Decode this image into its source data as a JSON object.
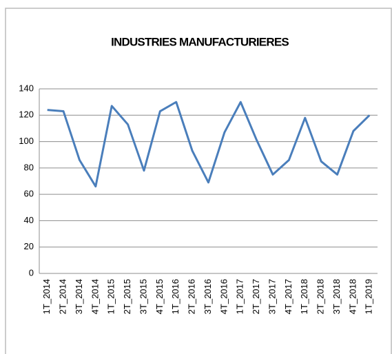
{
  "chart_data": {
    "type": "line",
    "title": "INDUSTRIES MANUFACTURIERES",
    "categories": [
      "1T_2014",
      "2T_2014",
      "3T_2014",
      "4T_2014",
      "1T_2015",
      "2T_2015",
      "3T_2015",
      "4T_2015",
      "1T_2016",
      "2T_2016",
      "3T_2016",
      "4T_2016",
      "1T_2017",
      "2T_2017",
      "3T_2017",
      "4T_2017",
      "1T_2018",
      "2T_2018",
      "3T_2018",
      "4T_2018",
      "1T_2019"
    ],
    "values": [
      124,
      123,
      86,
      66,
      127,
      113,
      78,
      123,
      130,
      93,
      69,
      107,
      130,
      101,
      75,
      86,
      118,
      85,
      75,
      108,
      120
    ],
    "color": "#4a7ebb",
    "ylim": [
      0,
      140
    ],
    "yticks": [
      0,
      20,
      40,
      60,
      80,
      100,
      120,
      140
    ],
    "grid": true
  }
}
